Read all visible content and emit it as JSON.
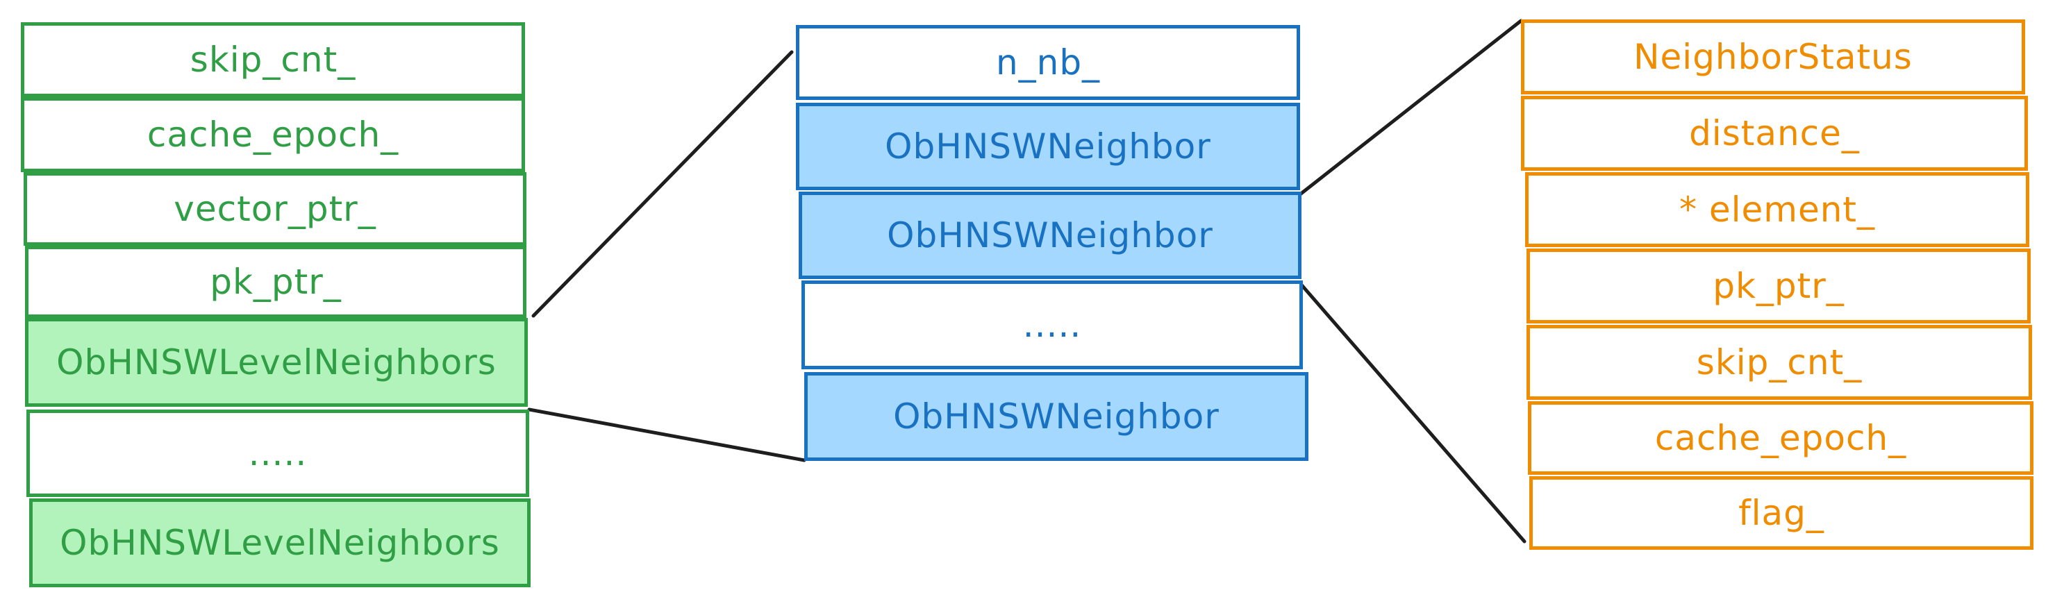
{
  "colors": {
    "green_stroke": "#2f9e44",
    "green_fill": "#b2f2bb",
    "blue_stroke": "#1971c2",
    "blue_fill": "#a5d8ff",
    "orange_stroke": "#f08c00",
    "connector": "#1e1e1e"
  },
  "left_stack": {
    "cells": [
      {
        "label": "skip_cnt_"
      },
      {
        "label": "cache_epoch_"
      },
      {
        "label": "vector_ptr_"
      },
      {
        "label": "pk_ptr_"
      },
      {
        "label": "ObHNSWLevelNeighbors"
      },
      {
        "label": "....."
      },
      {
        "label": "ObHNSWLevelNeighbors"
      }
    ]
  },
  "middle_stack": {
    "cells": [
      {
        "label": "n_nb_"
      },
      {
        "label": "ObHNSWNeighbor"
      },
      {
        "label": "ObHNSWNeighbor"
      },
      {
        "label": "....."
      },
      {
        "label": "ObHNSWNeighbor"
      }
    ]
  },
  "right_stack": {
    "cells": [
      {
        "label": "NeighborStatus"
      },
      {
        "label": "distance_"
      },
      {
        "label": "* element_"
      },
      {
        "label": "pk_ptr_"
      },
      {
        "label": "skip_cnt_"
      },
      {
        "label": "cache_epoch_"
      },
      {
        "label": "flag_"
      }
    ]
  }
}
